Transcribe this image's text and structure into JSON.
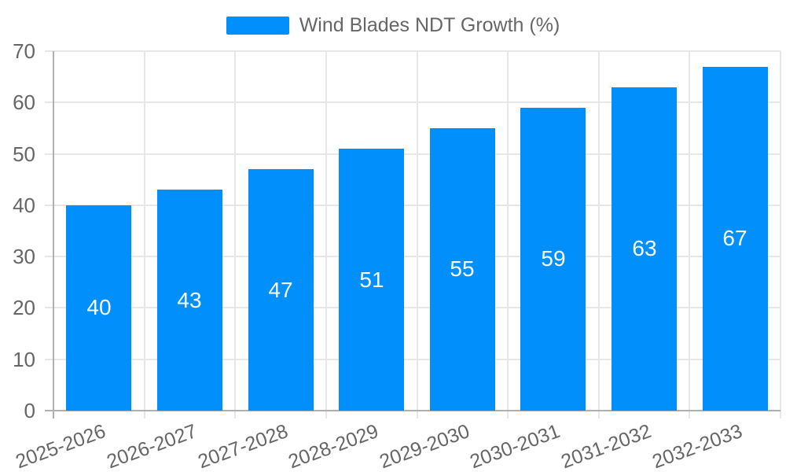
{
  "chart": {
    "legend": {
      "label": "Wind Blades NDT Growth (%)",
      "swatch_color": "#008FFB",
      "position": "top"
    }
  },
  "chart_data": {
    "type": "bar",
    "title": "Wind Blades NDT Growth (%)",
    "categories": [
      "2025-2026",
      "2026-2027",
      "2027-2028",
      "2028-2029",
      "2029-2030",
      "2030-2031",
      "2031-2032",
      "2032-2033"
    ],
    "series": [
      {
        "name": "Wind Blades NDT Growth (%)",
        "values": [
          40,
          43,
          47,
          51,
          55,
          59,
          63,
          67
        ]
      }
    ],
    "values": [
      40,
      43,
      47,
      51,
      55,
      59,
      63,
      67
    ],
    "xlabel": "",
    "ylabel": "",
    "ylim": [
      0,
      70
    ],
    "ytick_step": 10,
    "yticks": [
      0,
      10,
      20,
      30,
      40,
      50,
      60,
      70
    ],
    "grid": true,
    "legend_position": "top",
    "x_label_rotation_deg": -20,
    "data_labels": "inside-center",
    "colors": {
      "bar": "#008FFB",
      "data_label": "#ffffff",
      "axis_text": "#666666",
      "grid_line": "#e7e7e7",
      "axis_line": "#b0b0b0",
      "background": "#ffffff"
    }
  }
}
